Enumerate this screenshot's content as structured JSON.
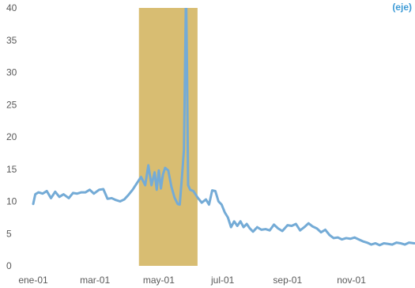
{
  "chart_data": {
    "type": "line",
    "title": "",
    "xlabel": "",
    "ylabel": "",
    "ylim": [
      0,
      40
    ],
    "y_ticks": [
      0,
      5,
      10,
      15,
      20,
      25,
      30,
      35,
      40
    ],
    "x_tick_labels": [
      "ene-01",
      "mar-01",
      "may-01",
      "jul-01",
      "sep-01",
      "nov-01"
    ],
    "x_tick_dates": [
      "2001-01-01",
      "2001-03-01",
      "2001-05-01",
      "2001-07-01",
      "2001-09-01",
      "2001-11-01"
    ],
    "xlim": [
      "2001-01-01",
      "2001-12-31"
    ],
    "grid": false,
    "legend_position": "top-right",
    "legend_visible_text": "(eje)",
    "shaded_region": {
      "start": "2001-04-12",
      "end": "2001-06-07",
      "color": "#d8bd72"
    },
    "series": [
      {
        "name": "",
        "color": "#74abd6",
        "x": [
          "2001-01-01",
          "2001-01-03",
          "2001-01-06",
          "2001-01-10",
          "2001-01-14",
          "2001-01-18",
          "2001-01-22",
          "2001-01-26",
          "2001-01-30",
          "2001-02-04",
          "2001-02-08",
          "2001-02-12",
          "2001-02-16",
          "2001-02-20",
          "2001-02-24",
          "2001-02-28",
          "2001-03-05",
          "2001-03-09",
          "2001-03-13",
          "2001-03-17",
          "2001-03-21",
          "2001-03-25",
          "2001-03-29",
          "2001-04-02",
          "2001-04-06",
          "2001-04-10",
          "2001-04-14",
          "2001-04-18",
          "2001-04-21",
          "2001-04-24",
          "2001-04-27",
          "2001-04-29",
          "2001-05-01",
          "2001-05-03",
          "2001-05-05",
          "2001-05-07",
          "2001-05-10",
          "2001-05-13",
          "2001-05-16",
          "2001-05-19",
          "2001-05-21",
          "2001-05-23",
          "2001-05-25",
          "2001-05-26",
          "2001-05-27",
          "2001-05-28",
          "2001-05-29",
          "2001-05-31",
          "2001-06-03",
          "2001-06-07",
          "2001-06-11",
          "2001-06-15",
          "2001-06-18",
          "2001-06-21",
          "2001-06-24",
          "2001-06-27",
          "2001-06-30",
          "2001-07-03",
          "2001-07-06",
          "2001-07-09",
          "2001-07-12",
          "2001-07-15",
          "2001-07-18",
          "2001-07-21",
          "2001-07-24",
          "2001-07-27",
          "2001-07-30",
          "2001-08-03",
          "2001-08-07",
          "2001-08-11",
          "2001-08-15",
          "2001-08-19",
          "2001-08-23",
          "2001-08-27",
          "2001-09-01",
          "2001-09-05",
          "2001-09-09",
          "2001-09-13",
          "2001-09-17",
          "2001-09-21",
          "2001-09-25",
          "2001-09-29",
          "2001-10-03",
          "2001-10-07",
          "2001-10-11",
          "2001-10-15",
          "2001-10-19",
          "2001-10-23",
          "2001-10-27",
          "2001-10-31",
          "2001-11-04",
          "2001-11-08",
          "2001-11-12",
          "2001-11-16",
          "2001-11-20",
          "2001-11-24",
          "2001-11-28",
          "2001-12-02",
          "2001-12-06",
          "2001-12-10",
          "2001-12-14",
          "2001-12-18",
          "2001-12-22",
          "2001-12-26",
          "2001-12-31"
        ],
        "y": [
          9.6,
          11.1,
          11.4,
          11.2,
          11.6,
          10.5,
          11.5,
          10.7,
          11.1,
          10.5,
          11.3,
          11.2,
          11.4,
          11.4,
          11.8,
          11.2,
          11.8,
          11.9,
          10.4,
          10.5,
          10.2,
          10.0,
          10.3,
          11.0,
          11.8,
          12.8,
          13.8,
          12.5,
          15.6,
          12.5,
          14.5,
          11.8,
          14.8,
          12.0,
          14.2,
          15.2,
          14.8,
          12.3,
          10.6,
          9.6,
          9.5,
          13.5,
          18.0,
          30.0,
          43.0,
          30.0,
          12.5,
          11.8,
          11.6,
          10.6,
          9.8,
          10.3,
          9.5,
          11.7,
          11.6,
          10.0,
          9.5,
          8.3,
          7.5,
          6.0,
          6.9,
          6.2,
          6.9,
          6.0,
          6.5,
          5.8,
          5.3,
          6.0,
          5.6,
          5.7,
          5.5,
          6.4,
          5.8,
          5.4,
          6.3,
          6.2,
          6.5,
          5.5,
          6.0,
          6.6,
          6.1,
          5.8,
          5.2,
          5.6,
          4.8,
          4.3,
          4.4,
          4.1,
          4.3,
          4.2,
          4.4,
          4.1,
          3.8,
          3.6,
          3.3,
          3.5,
          3.2,
          3.5,
          3.4,
          3.3,
          3.6,
          3.5,
          3.3,
          3.6,
          3.5
        ]
      }
    ]
  }
}
